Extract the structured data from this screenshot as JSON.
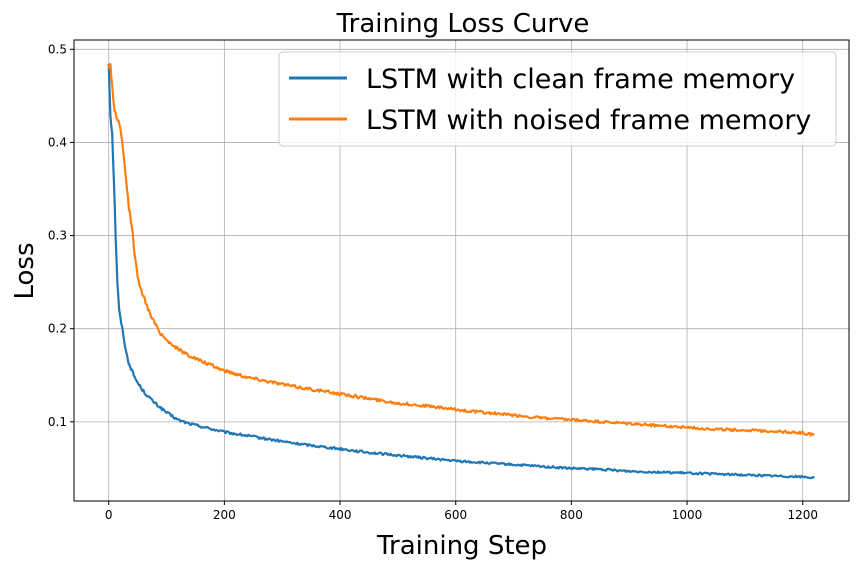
{
  "chart_data": {
    "type": "line",
    "title": "Training Loss Curve",
    "xlabel": "Training Step",
    "ylabel": "Loss",
    "xlim": [
      -60,
      1280
    ],
    "ylim": [
      0.015,
      0.51
    ],
    "xticks": [
      0,
      200,
      400,
      600,
      800,
      1000,
      1200
    ],
    "yticks": [
      0.1,
      0.2,
      0.3,
      0.4,
      0.5
    ],
    "xtick_labels": [
      "0",
      "200",
      "400",
      "600",
      "800",
      "1000",
      "1200"
    ],
    "ytick_labels": [
      "0.1",
      "0.2",
      "0.3",
      "0.4",
      "0.5"
    ],
    "grid": true,
    "legend_position": "top-right",
    "series": [
      {
        "name": "LSTM with clean frame memory",
        "color": "#1f77b4",
        "x": [
          0,
          3,
          6,
          9,
          12,
          15,
          18,
          20,
          25,
          30,
          35,
          40,
          45,
          50,
          60,
          70,
          80,
          90,
          100,
          120,
          140,
          160,
          180,
          200,
          240,
          280,
          320,
          360,
          400,
          450,
          500,
          550,
          600,
          650,
          700,
          750,
          800,
          850,
          900,
          950,
          1000,
          1050,
          1100,
          1150,
          1200,
          1220
        ],
        "y": [
          0.485,
          0.43,
          0.41,
          0.36,
          0.3,
          0.25,
          0.22,
          0.212,
          0.195,
          0.175,
          0.163,
          0.155,
          0.148,
          0.142,
          0.133,
          0.126,
          0.12,
          0.115,
          0.11,
          0.102,
          0.098,
          0.095,
          0.092,
          0.089,
          0.085,
          0.081,
          0.077,
          0.074,
          0.071,
          0.067,
          0.064,
          0.061,
          0.058,
          0.056,
          0.054,
          0.052,
          0.05,
          0.049,
          0.047,
          0.046,
          0.045,
          0.044,
          0.043,
          0.042,
          0.041,
          0.04
        ]
      },
      {
        "name": "LSTM with noised frame memory",
        "color": "#ff7f0e",
        "x": [
          0,
          3,
          6,
          10,
          15,
          20,
          25,
          30,
          35,
          40,
          45,
          50,
          55,
          60,
          70,
          80,
          90,
          100,
          120,
          140,
          160,
          180,
          200,
          240,
          280,
          320,
          360,
          400,
          450,
          500,
          550,
          600,
          650,
          700,
          750,
          800,
          850,
          900,
          950,
          1000,
          1050,
          1100,
          1150,
          1200,
          1220
        ],
        "y": [
          0.48,
          0.485,
          0.46,
          0.435,
          0.425,
          0.415,
          0.39,
          0.36,
          0.33,
          0.31,
          0.28,
          0.255,
          0.245,
          0.235,
          0.218,
          0.205,
          0.195,
          0.188,
          0.178,
          0.171,
          0.165,
          0.16,
          0.155,
          0.148,
          0.143,
          0.138,
          0.134,
          0.13,
          0.125,
          0.12,
          0.117,
          0.113,
          0.11,
          0.107,
          0.104,
          0.102,
          0.1,
          0.098,
          0.096,
          0.094,
          0.092,
          0.091,
          0.09,
          0.088,
          0.086
        ]
      }
    ]
  }
}
